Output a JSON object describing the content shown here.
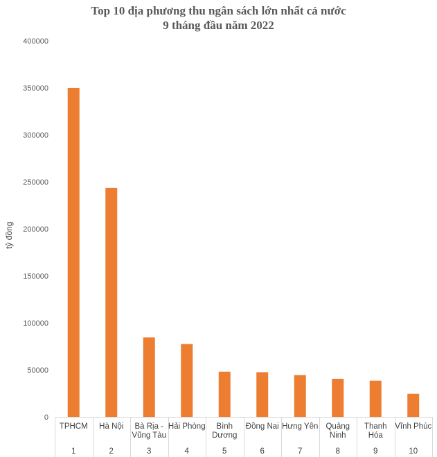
{
  "chart_data": {
    "type": "bar",
    "title": "Top 10 địa phương thu ngân sách lớn nhất cả nước",
    "subtitle": "9 tháng đầu năm 2022",
    "ylabel": "tỷ đồng",
    "xlabel": "",
    "ylim": [
      0,
      400000
    ],
    "yticks": [
      "0",
      "50000",
      "100000",
      "150000",
      "200000",
      "250000",
      "300000",
      "350000",
      "400000"
    ],
    "categories": [
      "TPHCM",
      "Hà Nội",
      "Bà Rịa - Vũng Tàu",
      "Hải Phòng",
      "Bình Dương",
      "Đồng Nai",
      "Hưng Yên",
      "Quảng Ninh",
      "Thanh Hóa",
      "Vĩnh Phúc"
    ],
    "category_lines": [
      [
        "TPHCM"
      ],
      [
        "Hà Nội"
      ],
      [
        "Bà Rịa -",
        "Vũng Tàu"
      ],
      [
        "Hải Phòng"
      ],
      [
        "Bình",
        "Dương"
      ],
      [
        "Đồng Nai"
      ],
      [
        "Hưng Yên"
      ],
      [
        "Quảng",
        "Ninh"
      ],
      [
        "Thanh",
        "Hóa"
      ],
      [
        "Vĩnh Phúc"
      ]
    ],
    "ranks": [
      "1",
      "2",
      "3",
      "4",
      "5",
      "6",
      "7",
      "8",
      "9",
      "10"
    ],
    "values": [
      350000,
      243500,
      84500,
      77500,
      48000,
      47500,
      44500,
      40500,
      38500,
      24500
    ],
    "bar_color": "#ED7D31",
    "grid": false,
    "legend": "none"
  }
}
